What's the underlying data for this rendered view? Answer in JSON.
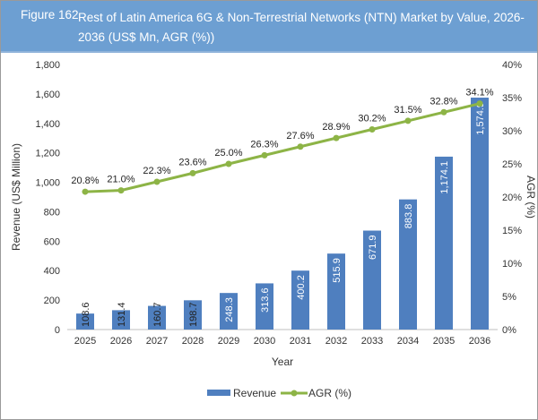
{
  "header": {
    "figure_label": "Figure 162",
    "title": "Rest of Latin America 6G & Non-Terrestrial Networks (NTN) Market by Value, 2026-2036 (US$ Mn, AGR (%))"
  },
  "colors": {
    "header": "#6d9fd2",
    "revenue": "#4f7fbf",
    "agr": "#8db446"
  },
  "chart_data": {
    "type": "bar+line",
    "categories": [
      "2025",
      "2026",
      "2027",
      "2028",
      "2029",
      "2030",
      "2031",
      "2032",
      "2033",
      "2034",
      "2035",
      "2036"
    ],
    "series": [
      {
        "name": "Revenue",
        "type": "bar",
        "axis": "left",
        "values": [
          108.6,
          131.4,
          160.7,
          198.7,
          248.3,
          313.6,
          400.2,
          515.9,
          671.9,
          883.8,
          1174.1,
          1574.9
        ],
        "labels": [
          "108.6",
          "131.4",
          "160.7",
          "198.7",
          "248.3",
          "313.6",
          "400.2",
          "515.9",
          "671.9",
          "883.8",
          "1,174.1",
          "1,574.9"
        ]
      },
      {
        "name": "AGR (%)",
        "type": "line",
        "axis": "right",
        "values": [
          20.8,
          21.0,
          22.3,
          23.6,
          25.0,
          26.3,
          27.6,
          28.9,
          30.2,
          31.5,
          32.8,
          34.1
        ],
        "labels": [
          "20.8%",
          "21.0%",
          "22.3%",
          "23.6%",
          "25.0%",
          "26.3%",
          "27.6%",
          "28.9%",
          "30.2%",
          "31.5%",
          "32.8%",
          "34.1%"
        ]
      }
    ],
    "xlabel": "Year",
    "ylabel": "Revenue (US$ Million)",
    "y2label": "AGR (%)",
    "ylim": [
      0,
      1800
    ],
    "y2lim": [
      0,
      40
    ],
    "yticks": [
      "0",
      "200",
      "400",
      "600",
      "800",
      "1,000",
      "1,200",
      "1,400",
      "1,600",
      "1,800"
    ],
    "y2ticks": [
      "0%",
      "5%",
      "10%",
      "15%",
      "20%",
      "25%",
      "30%",
      "35%",
      "40%"
    ],
    "grid": false,
    "legend": "bottom"
  }
}
